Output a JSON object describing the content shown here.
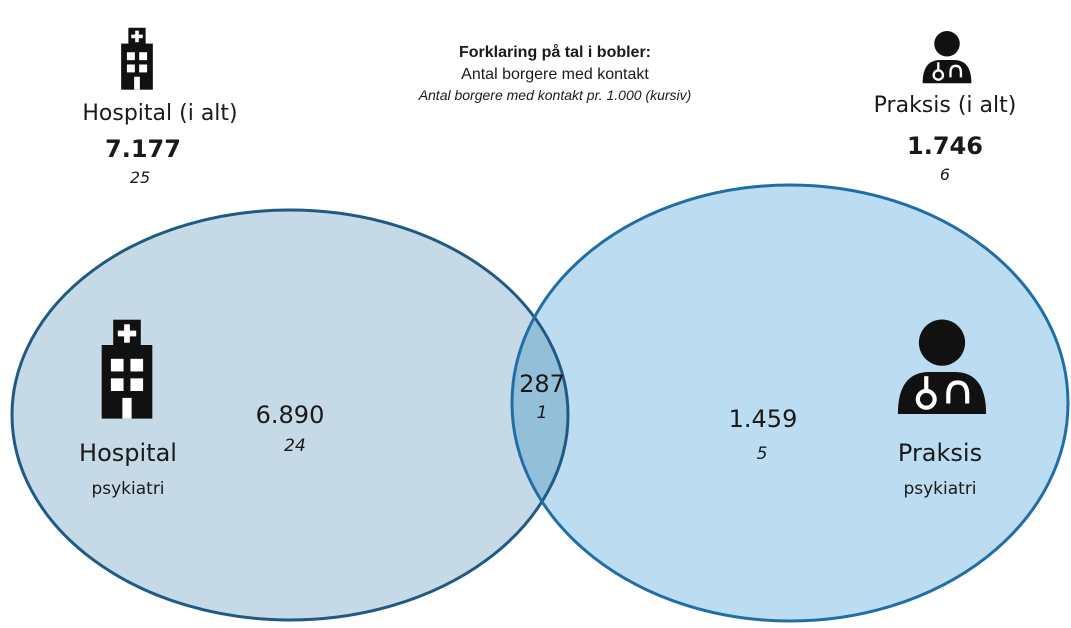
{
  "legend": {
    "title": "Forklaring på tal i bobler:",
    "line1": "Antal borgere med kontakt",
    "line2": "Antal borgere med kontakt pr. 1.000 (kursiv)"
  },
  "totals": {
    "hospital": {
      "label": "Hospital (i alt)",
      "count": "7.177",
      "rate": "25"
    },
    "praksis": {
      "label": "Praksis (i alt)",
      "count": "1.746",
      "rate": "6"
    }
  },
  "regions": {
    "hospital": {
      "label": "Hospital",
      "sublabel": "psykiatri",
      "count": "6.890",
      "rate": "24"
    },
    "overlap": {
      "count": "287",
      "rate": "1"
    },
    "praksis": {
      "label": "Praksis",
      "sublabel": "psykiatri",
      "count": "1.459",
      "rate": "5"
    }
  }
}
